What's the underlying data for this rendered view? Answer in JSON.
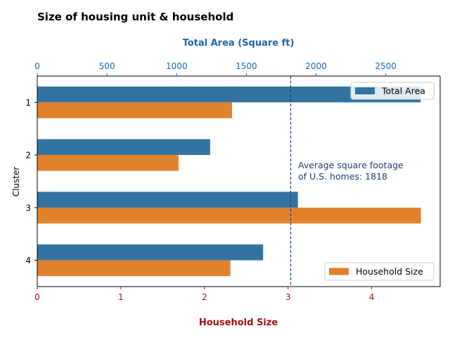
{
  "chart_data": {
    "type": "bar",
    "orientation": "horizontal",
    "title": "Size of housing unit & household",
    "ylabel": "Cluster",
    "categories": [
      "1",
      "2",
      "3",
      "4"
    ],
    "series": [
      {
        "name": "Total Area",
        "axis": "top",
        "color": "#3274a1",
        "values": [
          2750,
          1240,
          1870,
          1620
        ]
      },
      {
        "name": "Household Size",
        "axis": "bottom",
        "color": "#e1812c",
        "values": [
          2.33,
          1.69,
          4.59,
          2.31
        ]
      }
    ],
    "top_axis": {
      "label": "Total Area (Square ft)",
      "color": "#1f63b5",
      "xlim": [
        0,
        2890
      ],
      "ticks": [
        "0",
        "500",
        "1000",
        "1500",
        "2000",
        "2500"
      ]
    },
    "bottom_axis": {
      "label": "Household Size",
      "color": "#a50f15",
      "xlim": [
        0,
        4.82
      ],
      "ticks": [
        "0",
        "1",
        "2",
        "3",
        "4"
      ]
    },
    "reference_line": {
      "axis": "top",
      "value": 1818,
      "color": "#1f3f6e",
      "style": "dashed"
    },
    "annotation": {
      "lines": [
        "Average square footage",
        "of U.S. homes: 1818"
      ],
      "color": "#1f3f6e"
    },
    "legends": [
      {
        "label": "Total Area",
        "color": "#3274a1",
        "placement": "top-right"
      },
      {
        "label": "Household Size",
        "color": "#e1812c",
        "placement": "bottom-right"
      }
    ],
    "grid": false
  }
}
